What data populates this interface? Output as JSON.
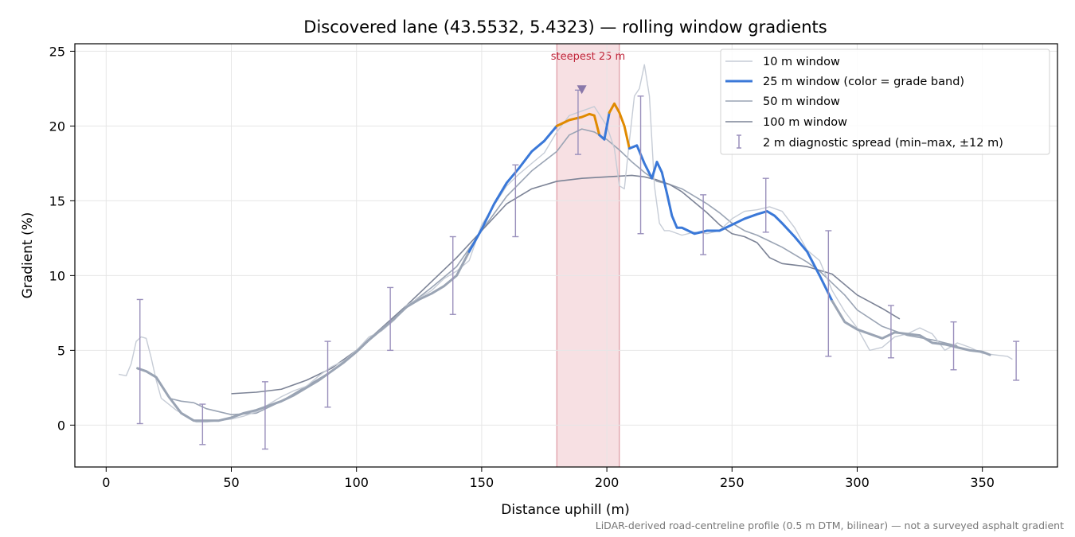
{
  "chart_data": {
    "type": "line",
    "title": "Discovered lane (43.5532, 5.4323) — rolling window gradients",
    "xlabel": "Distance uphill (m)",
    "ylabel": "Gradient (%)",
    "xlim": [
      -12.5,
      380
    ],
    "ylim": [
      -2.8,
      25.5
    ],
    "xticks": [
      0,
      50,
      100,
      150,
      200,
      250,
      300,
      350
    ],
    "yticks": [
      0,
      5,
      10,
      15,
      20,
      25
    ],
    "grid": true,
    "legend_position": "top-right",
    "footnote": "LiDAR-derived road-centreline profile (0.5 m DTM, bilinear) — not a surveyed asphalt gradient",
    "highlight": {
      "x_range": [
        180,
        205
      ],
      "label": "steepest 25 m",
      "color": "#e8a6ae",
      "marker_x": 190,
      "marker_y": 22.4,
      "marker_color": "#8a78aa"
    },
    "band_colors": {
      "moderate": "#3a78d8",
      "steep": "#e08a00"
    },
    "series": [
      {
        "name": "10 m window",
        "color": "#c6ccd6",
        "width": 1.4,
        "x": [
          5,
          8,
          10,
          12,
          14,
          16,
          18,
          20,
          22,
          25,
          28,
          32,
          36,
          40,
          45,
          50,
          55,
          60,
          65,
          70,
          75,
          80,
          85,
          90,
          95,
          100,
          105,
          110,
          115,
          120,
          125,
          130,
          135,
          140,
          145,
          150,
          155,
          160,
          165,
          170,
          175,
          180,
          185,
          190,
          195,
          200,
          203,
          205,
          207,
          209,
          211,
          213,
          215,
          217,
          219,
          221,
          223,
          225,
          230,
          235,
          240,
          245,
          250,
          255,
          260,
          265,
          270,
          275,
          280,
          285,
          290,
          295,
          300,
          305,
          310,
          315,
          320,
          325,
          330,
          335,
          340,
          345,
          350,
          355,
          360,
          362
        ],
        "y": [
          3.4,
          3.3,
          4.1,
          5.6,
          5.9,
          5.8,
          4.5,
          3.0,
          1.8,
          1.4,
          1.0,
          0.6,
          0.2,
          0.2,
          0.3,
          0.4,
          0.6,
          0.9,
          1.4,
          1.9,
          2.3,
          2.6,
          3.3,
          3.9,
          4.3,
          5.0,
          5.9,
          6.3,
          7.0,
          8.0,
          8.5,
          9.0,
          9.8,
          10.3,
          11.0,
          13.4,
          14.7,
          16.0,
          16.8,
          17.5,
          18.2,
          19.6,
          20.7,
          21.0,
          21.3,
          20.0,
          18.5,
          16.0,
          15.8,
          19.0,
          22.0,
          22.5,
          24.1,
          22.0,
          16.0,
          13.5,
          13.0,
          13.0,
          12.7,
          12.9,
          12.8,
          13.0,
          13.8,
          14.3,
          14.4,
          14.6,
          14.3,
          13.2,
          11.7,
          11.0,
          9.0,
          7.6,
          6.5,
          5.0,
          5.2,
          5.9,
          6.1,
          6.5,
          6.1,
          5.0,
          5.5,
          5.2,
          4.8,
          4.7,
          4.6,
          4.4
        ]
      },
      {
        "name": "25 m window (color = grade band)",
        "color": "#3a78d8",
        "width": 3,
        "banded": true,
        "x": [
          12.5,
          16,
          20,
          25,
          30,
          35,
          40,
          45,
          50,
          55,
          60,
          65,
          70,
          75,
          80,
          85,
          90,
          95,
          100,
          105,
          110,
          115,
          120,
          125,
          130,
          135,
          140,
          145,
          150,
          155,
          160,
          165,
          170,
          175,
          180,
          185,
          190,
          193,
          195,
          197,
          199,
          201,
          203,
          205,
          207,
          209,
          212,
          215,
          218,
          220,
          222,
          224,
          226,
          228,
          230,
          235,
          240,
          245,
          250,
          255,
          260,
          264,
          267,
          270,
          275,
          280,
          285,
          290,
          295,
          300,
          305,
          310,
          315,
          320,
          325,
          330,
          335,
          340,
          345,
          350,
          353
        ],
        "y": [
          3.8,
          3.6,
          3.2,
          1.9,
          0.8,
          0.3,
          0.3,
          0.3,
          0.5,
          0.8,
          1.0,
          1.3,
          1.6,
          2.0,
          2.5,
          3.0,
          3.6,
          4.2,
          4.9,
          5.7,
          6.4,
          7.1,
          7.9,
          8.4,
          8.8,
          9.3,
          10.0,
          11.6,
          13.1,
          14.8,
          16.2,
          17.2,
          18.3,
          19.0,
          20.0,
          20.4,
          20.6,
          20.8,
          20.7,
          19.4,
          19.1,
          20.9,
          21.5,
          20.9,
          20.0,
          18.5,
          18.7,
          17.5,
          16.5,
          17.6,
          16.9,
          15.5,
          14.0,
          13.2,
          13.2,
          12.8,
          13.0,
          13.0,
          13.4,
          13.8,
          14.1,
          14.3,
          14.0,
          13.5,
          12.6,
          11.6,
          10.0,
          8.3,
          6.9,
          6.4,
          6.1,
          5.8,
          6.2,
          6.1,
          6.0,
          5.5,
          5.4,
          5.2,
          5.0,
          4.9,
          4.7
        ]
      },
      {
        "name": "50 m window",
        "color": "#9aa4b4",
        "width": 1.6,
        "x": [
          25,
          30,
          35,
          40,
          45,
          50,
          60,
          70,
          80,
          90,
          100,
          110,
          120,
          130,
          140,
          150,
          160,
          170,
          180,
          185,
          190,
          195,
          200,
          205,
          210,
          215,
          220,
          225,
          230,
          235,
          240,
          245,
          250,
          255,
          260,
          265,
          270,
          275,
          280,
          285,
          290,
          295,
          300,
          310,
          320,
          330,
          340
        ],
        "y": [
          1.8,
          1.6,
          1.5,
          1.1,
          0.9,
          0.7,
          0.8,
          1.6,
          2.6,
          3.6,
          4.9,
          6.4,
          7.9,
          9.2,
          10.6,
          13.0,
          15.3,
          17.0,
          18.3,
          19.4,
          19.8,
          19.6,
          19.1,
          18.4,
          17.6,
          16.9,
          16.3,
          16.1,
          15.8,
          15.3,
          14.8,
          14.2,
          13.5,
          13.0,
          12.7,
          12.3,
          11.9,
          11.4,
          10.9,
          10.3,
          9.5,
          8.7,
          7.7,
          6.6,
          6.0,
          5.7,
          5.3
        ]
      },
      {
        "name": "100 m window",
        "color": "#7c8396",
        "width": 1.6,
        "x": [
          50,
          60,
          70,
          80,
          90,
          100,
          110,
          120,
          130,
          140,
          150,
          160,
          170,
          180,
          190,
          200,
          210,
          215,
          220,
          225,
          230,
          235,
          240,
          245,
          250,
          255,
          260,
          265,
          270,
          280,
          290,
          300,
          310,
          317
        ],
        "y": [
          2.1,
          2.2,
          2.4,
          3.0,
          3.8,
          5.0,
          6.5,
          8.0,
          9.6,
          11.2,
          13.0,
          14.8,
          15.8,
          16.3,
          16.5,
          16.6,
          16.7,
          16.6,
          16.4,
          16.1,
          15.6,
          14.9,
          14.2,
          13.4,
          12.8,
          12.6,
          12.2,
          11.2,
          10.8,
          10.6,
          10.1,
          8.7,
          7.8,
          7.1
        ]
      }
    ],
    "errorbars": {
      "name": "2 m diagnostic spread (min–max, ±12 m)",
      "color": "#9a90bc",
      "points": [
        {
          "x": 13.5,
          "min": 0.1,
          "max": 8.4
        },
        {
          "x": 38.5,
          "min": -1.3,
          "max": 1.4
        },
        {
          "x": 63.5,
          "min": -1.6,
          "max": 2.9
        },
        {
          "x": 88.5,
          "min": 1.2,
          "max": 5.6
        },
        {
          "x": 113.5,
          "min": 5.0,
          "max": 9.2
        },
        {
          "x": 138.5,
          "min": 7.4,
          "max": 12.6
        },
        {
          "x": 163.5,
          "min": 12.6,
          "max": 17.4
        },
        {
          "x": 188.5,
          "min": 18.1,
          "max": 22.4
        },
        {
          "x": 213.5,
          "min": 12.8,
          "max": 22.0
        },
        {
          "x": 238.5,
          "min": 11.4,
          "max": 15.4
        },
        {
          "x": 263.5,
          "min": 12.9,
          "max": 16.5
        },
        {
          "x": 288.5,
          "min": 4.6,
          "max": 13.0
        },
        {
          "x": 313.5,
          "min": 4.5,
          "max": 8.0
        },
        {
          "x": 338.5,
          "min": 3.7,
          "max": 6.9
        },
        {
          "x": 363.5,
          "min": 3.0,
          "max": 5.6
        }
      ]
    }
  }
}
